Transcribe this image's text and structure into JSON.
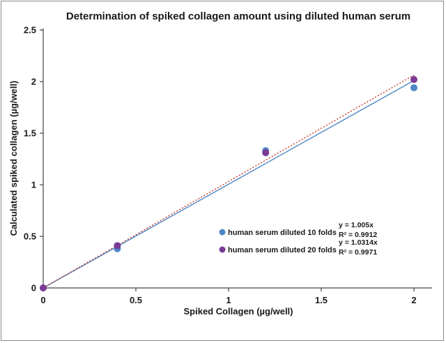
{
  "chart_data": {
    "type": "scatter",
    "title": "Determination of spiked collagen amount using diluted human serum",
    "xlabel": "Spiked Collagen (µg/well)",
    "ylabel": "Calculated spiked collagen (µg/well)",
    "xlim": [
      0,
      2
    ],
    "ylim": [
      0,
      2.5
    ],
    "x_ticks": [
      0,
      0.5,
      1,
      1.5,
      2
    ],
    "y_ticks": [
      0,
      0.5,
      1,
      1.5,
      2,
      2.5
    ],
    "x_tick_labels": [
      "0",
      "0.5",
      "1",
      "1.5",
      "2"
    ],
    "y_tick_labels": [
      "0",
      "0.5",
      "1",
      "1.5",
      "2",
      "2.5"
    ],
    "grid": false,
    "legend_position": "lower-right",
    "series": [
      {
        "name": "human serum diluted 10 folds",
        "color": "#4f86c6",
        "x": [
          0,
          0.4,
          1.2,
          2
        ],
        "y": [
          0,
          0.38,
          1.33,
          1.94
        ],
        "trendline": {
          "slope": 1.005,
          "style": "solid",
          "equation": "y = 1.005x",
          "r2": "R² = 0.9912"
        }
      },
      {
        "name": "human serum diluted 20 folds",
        "color": "#7b3a96",
        "x": [
          0,
          0.4,
          1.2,
          2
        ],
        "y": [
          0,
          0.41,
          1.31,
          2.02
        ],
        "trendline": {
          "slope": 1.0314,
          "style": "dotted",
          "line_color": "#c0392b",
          "equation": "y = 1.0314x",
          "r2": "R² = 0.9971"
        }
      }
    ]
  }
}
